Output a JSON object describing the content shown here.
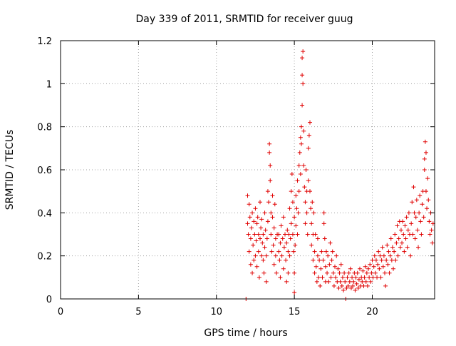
{
  "chart_data": {
    "type": "scatter",
    "title": "Day 339 of 2011, SRMTID for receiver guug",
    "xlabel": "GPS time / hours",
    "ylabel": "SRMTID / TECUs",
    "xlim": [
      0,
      24
    ],
    "ylim": [
      0,
      1.2
    ],
    "x_ticks": [
      0,
      5,
      10,
      15,
      20
    ],
    "y_ticks": [
      0,
      0.2,
      0.4,
      0.6,
      0.8,
      1,
      1.2
    ],
    "x_tick_labels": [
      "0",
      "5",
      "10",
      "15",
      "20"
    ],
    "y_tick_labels": [
      "0",
      "0.2",
      "0.4",
      "0.6",
      "0.8",
      "1",
      "1.2"
    ],
    "grid": true,
    "marker": "+",
    "series_color": "#e00000",
    "points": [
      [
        11.9,
        0.0
      ],
      [
        12.0,
        0.48
      ],
      [
        12.0,
        0.35
      ],
      [
        12.05,
        0.3
      ],
      [
        12.1,
        0.44
      ],
      [
        12.1,
        0.22
      ],
      [
        12.15,
        0.38
      ],
      [
        12.2,
        0.28
      ],
      [
        12.2,
        0.16
      ],
      [
        12.25,
        0.33
      ],
      [
        12.3,
        0.12
      ],
      [
        12.3,
        0.4
      ],
      [
        12.35,
        0.25
      ],
      [
        12.4,
        0.18
      ],
      [
        12.4,
        0.36
      ],
      [
        12.45,
        0.3
      ],
      [
        12.5,
        0.42
      ],
      [
        12.5,
        0.2
      ],
      [
        12.55,
        0.27
      ],
      [
        12.6,
        0.35
      ],
      [
        12.6,
        0.15
      ],
      [
        12.65,
        0.38
      ],
      [
        12.7,
        0.3
      ],
      [
        12.7,
        0.22
      ],
      [
        12.75,
        0.1
      ],
      [
        12.8,
        0.28
      ],
      [
        12.8,
        0.45
      ],
      [
        12.85,
        0.33
      ],
      [
        12.9,
        0.2
      ],
      [
        12.9,
        0.37
      ],
      [
        12.95,
        0.26
      ],
      [
        13.0,
        0.18
      ],
      [
        13.0,
        0.3
      ],
      [
        13.05,
        0.12
      ],
      [
        13.1,
        0.24
      ],
      [
        13.1,
        0.4
      ],
      [
        13.15,
        0.32
      ],
      [
        13.2,
        0.2
      ],
      [
        13.2,
        0.08
      ],
      [
        13.25,
        0.28
      ],
      [
        13.3,
        0.5
      ],
      [
        13.3,
        0.36
      ],
      [
        13.35,
        0.45
      ],
      [
        13.4,
        0.72
      ],
      [
        13.4,
        0.68
      ],
      [
        13.45,
        0.62
      ],
      [
        13.45,
        0.55
      ],
      [
        13.5,
        0.4
      ],
      [
        13.5,
        0.3
      ],
      [
        13.55,
        0.22
      ],
      [
        13.6,
        0.38
      ],
      [
        13.6,
        0.48
      ],
      [
        13.65,
        0.25
      ],
      [
        13.7,
        0.16
      ],
      [
        13.7,
        0.33
      ],
      [
        13.75,
        0.44
      ],
      [
        13.8,
        0.28
      ],
      [
        13.8,
        0.2
      ],
      [
        13.85,
        0.12
      ],
      [
        13.9,
        0.3
      ],
      [
        14.0,
        0.22
      ],
      [
        14.0,
        0.3
      ],
      [
        14.05,
        0.18
      ],
      [
        14.1,
        0.26
      ],
      [
        14.1,
        0.1
      ],
      [
        14.15,
        0.34
      ],
      [
        14.2,
        0.2
      ],
      [
        14.25,
        0.28
      ],
      [
        14.3,
        0.14
      ],
      [
        14.3,
        0.38
      ],
      [
        14.35,
        0.24
      ],
      [
        14.4,
        0.3
      ],
      [
        14.45,
        0.18
      ],
      [
        14.5,
        0.26
      ],
      [
        14.5,
        0.08
      ],
      [
        14.55,
        0.32
      ],
      [
        14.6,
        0.22
      ],
      [
        14.6,
        0.12
      ],
      [
        14.65,
        0.3
      ],
      [
        14.7,
        0.42
      ],
      [
        14.7,
        0.2
      ],
      [
        14.75,
        0.28
      ],
      [
        14.8,
        0.5
      ],
      [
        14.8,
        0.35
      ],
      [
        14.85,
        0.58
      ],
      [
        14.9,
        0.45
      ],
      [
        14.9,
        0.3
      ],
      [
        14.95,
        0.22
      ],
      [
        15.0,
        0.38
      ],
      [
        15.0,
        0.12
      ],
      [
        15.0,
        0.03
      ],
      [
        15.05,
        0.25
      ],
      [
        15.1,
        0.48
      ],
      [
        15.1,
        0.34
      ],
      [
        15.15,
        0.42
      ],
      [
        15.2,
        0.55
      ],
      [
        15.2,
        0.3
      ],
      [
        15.25,
        0.4
      ],
      [
        15.3,
        0.62
      ],
      [
        15.3,
        0.5
      ],
      [
        15.35,
        0.68
      ],
      [
        15.4,
        0.75
      ],
      [
        15.4,
        0.58
      ],
      [
        15.45,
        0.8
      ],
      [
        15.45,
        0.72
      ],
      [
        15.5,
        0.9
      ],
      [
        15.5,
        1.04
      ],
      [
        15.5,
        1.12
      ],
      [
        15.55,
        1.15
      ],
      [
        15.55,
        1.0
      ],
      [
        15.6,
        0.78
      ],
      [
        15.6,
        0.62
      ],
      [
        15.65,
        0.52
      ],
      [
        15.7,
        0.45
      ],
      [
        15.7,
        0.35
      ],
      [
        15.75,
        0.6
      ],
      [
        15.8,
        0.5
      ],
      [
        15.8,
        0.4
      ],
      [
        15.85,
        0.3
      ],
      [
        15.9,
        0.55
      ],
      [
        15.9,
        0.7
      ],
      [
        15.95,
        0.76
      ],
      [
        16.0,
        0.82
      ],
      [
        16.0,
        0.5
      ],
      [
        16.05,
        0.42
      ],
      [
        16.1,
        0.35
      ],
      [
        16.1,
        0.25
      ],
      [
        16.15,
        0.45
      ],
      [
        16.2,
        0.3
      ],
      [
        16.2,
        0.18
      ],
      [
        16.25,
        0.4
      ],
      [
        16.3,
        0.12
      ],
      [
        16.3,
        0.22
      ],
      [
        16.35,
        0.3
      ],
      [
        16.4,
        0.15
      ],
      [
        16.45,
        0.08
      ],
      [
        16.5,
        0.2
      ],
      [
        16.5,
        0.28
      ],
      [
        16.55,
        0.1
      ],
      [
        16.6,
        0.18
      ],
      [
        16.65,
        0.06
      ],
      [
        16.7,
        0.14
      ],
      [
        16.75,
        0.22
      ],
      [
        16.8,
        0.1
      ],
      [
        16.85,
        0.18
      ],
      [
        16.9,
        0.35
      ],
      [
        16.9,
        0.4
      ],
      [
        16.95,
        0.28
      ],
      [
        17.0,
        0.15
      ],
      [
        17.0,
        0.08
      ],
      [
        17.05,
        0.22
      ],
      [
        17.1,
        0.12
      ],
      [
        17.15,
        0.2
      ],
      [
        17.2,
        0.08
      ],
      [
        17.25,
        0.16
      ],
      [
        17.3,
        0.26
      ],
      [
        17.35,
        0.1
      ],
      [
        17.4,
        0.18
      ],
      [
        17.45,
        0.22
      ],
      [
        17.5,
        0.12
      ],
      [
        17.55,
        0.06
      ],
      [
        17.6,
        0.15
      ],
      [
        17.65,
        0.1
      ],
      [
        17.7,
        0.2
      ],
      [
        17.75,
        0.08
      ],
      [
        17.8,
        0.14
      ],
      [
        17.85,
        0.05
      ],
      [
        17.9,
        0.12
      ],
      [
        17.95,
        0.08
      ],
      [
        18.0,
        0.16
      ],
      [
        18.05,
        0.06
      ],
      [
        18.1,
        0.1
      ],
      [
        18.15,
        0.04
      ],
      [
        18.2,
        0.12
      ],
      [
        18.25,
        0.08
      ],
      [
        18.3,
        0.0
      ],
      [
        18.35,
        0.05
      ],
      [
        18.4,
        0.1
      ],
      [
        18.45,
        0.06
      ],
      [
        18.5,
        0.12
      ],
      [
        18.55,
        0.08
      ],
      [
        18.6,
        0.14
      ],
      [
        18.65,
        0.05
      ],
      [
        18.7,
        0.1
      ],
      [
        18.75,
        0.06
      ],
      [
        18.8,
        0.08
      ],
      [
        18.85,
        0.12
      ],
      [
        18.9,
        0.04
      ],
      [
        18.95,
        0.1
      ],
      [
        19.0,
        0.07
      ],
      [
        19.05,
        0.12
      ],
      [
        19.1,
        0.05
      ],
      [
        19.15,
        0.09
      ],
      [
        19.2,
        0.14
      ],
      [
        19.25,
        0.06
      ],
      [
        19.3,
        0.1
      ],
      [
        19.35,
        0.08
      ],
      [
        19.4,
        0.13
      ],
      [
        19.45,
        0.06
      ],
      [
        19.5,
        0.1
      ],
      [
        19.55,
        0.15
      ],
      [
        19.6,
        0.08
      ],
      [
        19.65,
        0.12
      ],
      [
        19.7,
        0.06
      ],
      [
        19.75,
        0.14
      ],
      [
        19.8,
        0.1
      ],
      [
        19.85,
        0.16
      ],
      [
        19.9,
        0.08
      ],
      [
        19.95,
        0.12
      ],
      [
        20.0,
        0.18
      ],
      [
        20.05,
        0.1
      ],
      [
        20.1,
        0.15
      ],
      [
        20.15,
        0.2
      ],
      [
        20.2,
        0.12
      ],
      [
        20.25,
        0.18
      ],
      [
        20.3,
        0.1
      ],
      [
        20.35,
        0.16
      ],
      [
        20.4,
        0.22
      ],
      [
        20.45,
        0.14
      ],
      [
        20.5,
        0.2
      ],
      [
        20.55,
        0.1
      ],
      [
        20.6,
        0.18
      ],
      [
        20.65,
        0.24
      ],
      [
        20.7,
        0.15
      ],
      [
        20.75,
        0.2
      ],
      [
        20.8,
        0.12
      ],
      [
        20.85,
        0.06
      ],
      [
        20.9,
        0.18
      ],
      [
        20.95,
        0.25
      ],
      [
        21.0,
        0.16
      ],
      [
        21.05,
        0.22
      ],
      [
        21.1,
        0.12
      ],
      [
        21.15,
        0.2
      ],
      [
        21.2,
        0.28
      ],
      [
        21.25,
        0.18
      ],
      [
        21.3,
        0.24
      ],
      [
        21.35,
        0.14
      ],
      [
        21.4,
        0.22
      ],
      [
        21.45,
        0.3
      ],
      [
        21.5,
        0.18
      ],
      [
        21.55,
        0.26
      ],
      [
        21.6,
        0.34
      ],
      [
        21.65,
        0.2
      ],
      [
        21.7,
        0.28
      ],
      [
        21.75,
        0.36
      ],
      [
        21.8,
        0.24
      ],
      [
        21.85,
        0.32
      ],
      [
        21.9,
        0.26
      ],
      [
        21.95,
        0.36
      ],
      [
        22.0,
        0.3
      ],
      [
        22.05,
        0.22
      ],
      [
        22.1,
        0.34
      ],
      [
        22.15,
        0.28
      ],
      [
        22.2,
        0.38
      ],
      [
        22.25,
        0.24
      ],
      [
        22.3,
        0.32
      ],
      [
        22.35,
        0.4
      ],
      [
        22.4,
        0.3
      ],
      [
        22.45,
        0.2
      ],
      [
        22.5,
        0.35
      ],
      [
        22.55,
        0.45
      ],
      [
        22.6,
        0.3
      ],
      [
        22.65,
        0.52
      ],
      [
        22.7,
        0.4
      ],
      [
        22.75,
        0.28
      ],
      [
        22.8,
        0.38
      ],
      [
        22.85,
        0.46
      ],
      [
        22.9,
        0.32
      ],
      [
        22.95,
        0.24
      ],
      [
        23.0,
        0.4
      ],
      [
        23.05,
        0.48
      ],
      [
        23.1,
        0.36
      ],
      [
        23.15,
        0.3
      ],
      [
        23.2,
        0.44
      ],
      [
        23.25,
        0.5
      ],
      [
        23.3,
        0.38
      ],
      [
        23.35,
        0.6
      ],
      [
        23.35,
        0.65
      ],
      [
        23.4,
        0.73
      ],
      [
        23.45,
        0.68
      ],
      [
        23.45,
        0.5
      ],
      [
        23.5,
        0.42
      ],
      [
        23.55,
        0.56
      ],
      [
        23.6,
        0.46
      ],
      [
        23.65,
        0.36
      ],
      [
        23.7,
        0.3
      ],
      [
        23.75,
        0.4
      ],
      [
        23.8,
        0.32
      ],
      [
        23.85,
        0.26
      ],
      [
        23.9,
        0.35
      ]
    ]
  }
}
